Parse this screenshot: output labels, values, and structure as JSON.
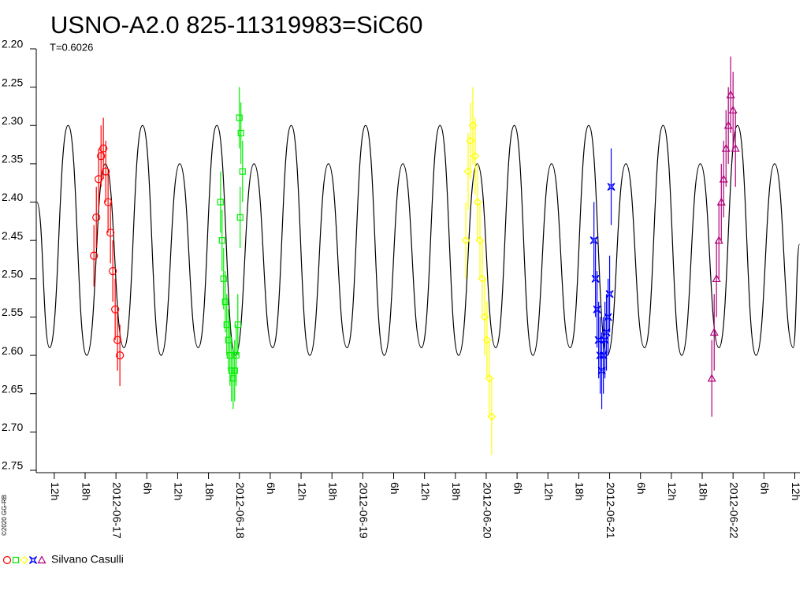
{
  "chart_data": {
    "type": "lightcurve",
    "title": "USNO-A2.0 825-11319983=SiC60",
    "subtitle": "T=0.6026",
    "credit": "©2020 GG-RB",
    "legend_label": "Silvano Casulli",
    "ylim": [
      2.2,
      2.75
    ],
    "y_inverted": true,
    "yticks": [
      {
        "value": 2.2,
        "label": "2.20"
      },
      2.25,
      {
        "value": 2.3,
        "label": "2.30"
      },
      2.35,
      {
        "value": 2.4,
        "label": "2.40"
      },
      2.45,
      {
        "value": 2.5,
        "label": "2.50"
      },
      2.55,
      {
        "value": 2.6,
        "label": "2.60"
      },
      2.65,
      {
        "value": 2.7,
        "label": "2.70"
      },
      2.75
    ],
    "xlim": [
      "2012-06-16T08:30",
      "2012-06-22T13:00"
    ],
    "xticks": [
      {
        "value": "2012-06-16T12:00",
        "label": "12h"
      },
      {
        "value": "2012-06-16T18:00",
        "label": "18h"
      },
      {
        "value": "2012-06-17T00:00",
        "label": "2012-06-17"
      },
      {
        "value": "2012-06-17T06:00",
        "label": "6h"
      },
      {
        "value": "2012-06-17T12:00",
        "label": "12h"
      },
      {
        "value": "2012-06-17T18:00",
        "label": "18h"
      },
      {
        "value": "2012-06-18T00:00",
        "label": "2012-06-18"
      },
      {
        "value": "2012-06-18T06:00",
        "label": "6h"
      },
      {
        "value": "2012-06-18T12:00",
        "label": "12h"
      },
      {
        "value": "2012-06-18T18:00",
        "label": "18h"
      },
      {
        "value": "2012-06-19T00:00",
        "label": "2012-06-19"
      },
      {
        "value": "2012-06-19T06:00",
        "label": "6h"
      },
      {
        "value": "2012-06-19T12:00",
        "label": "12h"
      },
      {
        "value": "2012-06-19T18:00",
        "label": "18h"
      },
      {
        "value": "2012-06-20T00:00",
        "label": "2012-06-20"
      },
      {
        "value": "2012-06-20T06:00",
        "label": "6h"
      },
      {
        "value": "2012-06-20T12:00",
        "label": "12h"
      },
      {
        "value": "2012-06-20T18:00",
        "label": "18h"
      },
      {
        "value": "2012-06-21T00:00",
        "label": "2012-06-21"
      },
      {
        "value": "2012-06-21T06:00",
        "label": "6h"
      },
      {
        "value": "2012-06-21T12:00",
        "label": "12h"
      },
      {
        "value": "2012-06-21T18:00",
        "label": "18h"
      },
      {
        "value": "2012-06-22T00:00",
        "label": "2012-06-22"
      },
      {
        "value": "2012-06-22T06:00",
        "label": "6h"
      },
      {
        "value": "2012-06-22T12:00",
        "label": "12h"
      }
    ],
    "model": {
      "color": "#000000",
      "x": [
        "2012-06-16T08:37",
        "2012-06-16T11:05",
        "2012-06-16T14:42",
        "2012-06-16T18:19",
        "2012-06-16T21:56",
        "2012-06-17T01:33",
        "2012-06-17T05:10",
        "2012-06-17T08:47",
        "2012-06-17T12:24",
        "2012-06-17T16:00",
        "2012-06-17T19:37",
        "2012-06-17T23:14",
        "2012-06-18T02:51",
        "2012-06-18T06:28",
        "2012-06-18T10:05",
        "2012-06-18T13:42",
        "2012-06-18T17:19",
        "2012-06-18T20:56",
        "2012-06-19T00:33",
        "2012-06-19T04:10",
        "2012-06-19T07:47",
        "2012-06-19T11:24",
        "2012-06-19T15:01",
        "2012-06-19T18:38",
        "2012-06-19T22:15",
        "2012-06-20T01:51",
        "2012-06-20T05:28",
        "2012-06-20T09:05",
        "2012-06-20T12:42",
        "2012-06-20T16:19",
        "2012-06-20T19:56",
        "2012-06-20T23:33",
        "2012-06-21T03:10",
        "2012-06-21T06:47",
        "2012-06-21T10:24",
        "2012-06-21T14:01",
        "2012-06-21T17:38",
        "2012-06-21T21:15",
        "2012-06-22T00:52",
        "2012-06-22T04:29",
        "2012-06-22T08:05",
        "2012-06-22T11:42",
        "2012-06-22T12:55"
      ],
      "values": [
        2.4,
        2.59,
        2.3,
        2.6,
        2.35,
        2.59,
        2.3,
        2.6,
        2.35,
        2.59,
        2.3,
        2.6,
        2.35,
        2.59,
        2.3,
        2.6,
        2.35,
        2.59,
        2.3,
        2.6,
        2.35,
        2.59,
        2.3,
        2.6,
        2.35,
        2.59,
        2.3,
        2.6,
        2.35,
        2.59,
        2.3,
        2.6,
        2.35,
        2.59,
        2.3,
        2.6,
        2.35,
        2.59,
        2.3,
        2.6,
        2.35,
        2.59,
        2.455
      ]
    },
    "series": [
      {
        "color": "#ff0000",
        "marker": "circle",
        "error": 0.04,
        "x": [
          "2012-06-16T19:43",
          "2012-06-16T20:11",
          "2012-06-16T20:38",
          "2012-06-16T21:06",
          "2012-06-16T21:33",
          "2012-06-16T22:01",
          "2012-06-16T22:28",
          "2012-06-16T22:56",
          "2012-06-16T23:23",
          "2012-06-16T23:51",
          "2012-06-17T00:18",
          "2012-06-17T00:46"
        ],
        "values": [
          2.47,
          2.42,
          2.37,
          2.34,
          2.33,
          2.36,
          2.4,
          2.44,
          2.49,
          2.54,
          2.58,
          2.6
        ]
      },
      {
        "color": "#00ee00",
        "marker": "square",
        "error": 0.04,
        "x": [
          "2012-06-17T20:20",
          "2012-06-17T20:38",
          "2012-06-17T20:56",
          "2012-06-17T21:15",
          "2012-06-17T21:33",
          "2012-06-17T21:52",
          "2012-06-17T22:10",
          "2012-06-17T22:28",
          "2012-06-17T22:47",
          "2012-06-17T23:05",
          "2012-06-17T23:23",
          "2012-06-17T23:42",
          "2012-06-18T00:00",
          "2012-06-18T00:09",
          "2012-06-18T00:18",
          "2012-06-18T00:37"
        ],
        "values": [
          2.4,
          2.45,
          2.5,
          2.53,
          2.56,
          2.58,
          2.6,
          2.62,
          2.63,
          2.62,
          2.6,
          2.56,
          2.29,
          2.42,
          2.31,
          2.36
        ]
      },
      {
        "color": "#ffff00",
        "marker": "diamond",
        "error": 0.05,
        "x": [
          "2012-06-19T20:02",
          "2012-06-19T20:29",
          "2012-06-19T20:57",
          "2012-06-19T21:24",
          "2012-06-19T21:52",
          "2012-06-19T22:19",
          "2012-06-19T22:47",
          "2012-06-19T23:14",
          "2012-06-19T23:42",
          "2012-06-20T00:09",
          "2012-06-20T00:37",
          "2012-06-20T01:04"
        ],
        "values": [
          2.45,
          2.36,
          2.32,
          2.3,
          2.34,
          2.4,
          2.45,
          2.5,
          2.55,
          2.58,
          2.63,
          2.68
        ]
      },
      {
        "color": "#0000ff",
        "marker": "star",
        "error": 0.05,
        "x": [
          "2012-06-20T20:57",
          "2012-06-20T21:15",
          "2012-06-20T21:33",
          "2012-06-20T21:52",
          "2012-06-20T22:10",
          "2012-06-20T22:28",
          "2012-06-20T22:47",
          "2012-06-20T23:05",
          "2012-06-20T23:23",
          "2012-06-20T23:42",
          "2012-06-21T00:00",
          "2012-06-21T00:18"
        ],
        "values": [
          2.45,
          2.5,
          2.54,
          2.58,
          2.6,
          2.62,
          2.6,
          2.58,
          2.57,
          2.55,
          2.52,
          2.38
        ]
      },
      {
        "color": "#b0007a",
        "marker": "triangle",
        "error": 0.05,
        "x": [
          "2012-06-21T19:52",
          "2012-06-21T20:20",
          "2012-06-21T20:47",
          "2012-06-21T21:15",
          "2012-06-21T21:43",
          "2012-06-21T22:10",
          "2012-06-21T22:38",
          "2012-06-21T23:05",
          "2012-06-21T23:32",
          "2012-06-22T00:00",
          "2012-06-22T00:28"
        ],
        "values": [
          2.63,
          2.57,
          2.5,
          2.45,
          2.4,
          2.37,
          2.33,
          2.3,
          2.26,
          2.28,
          2.33
        ]
      }
    ]
  }
}
